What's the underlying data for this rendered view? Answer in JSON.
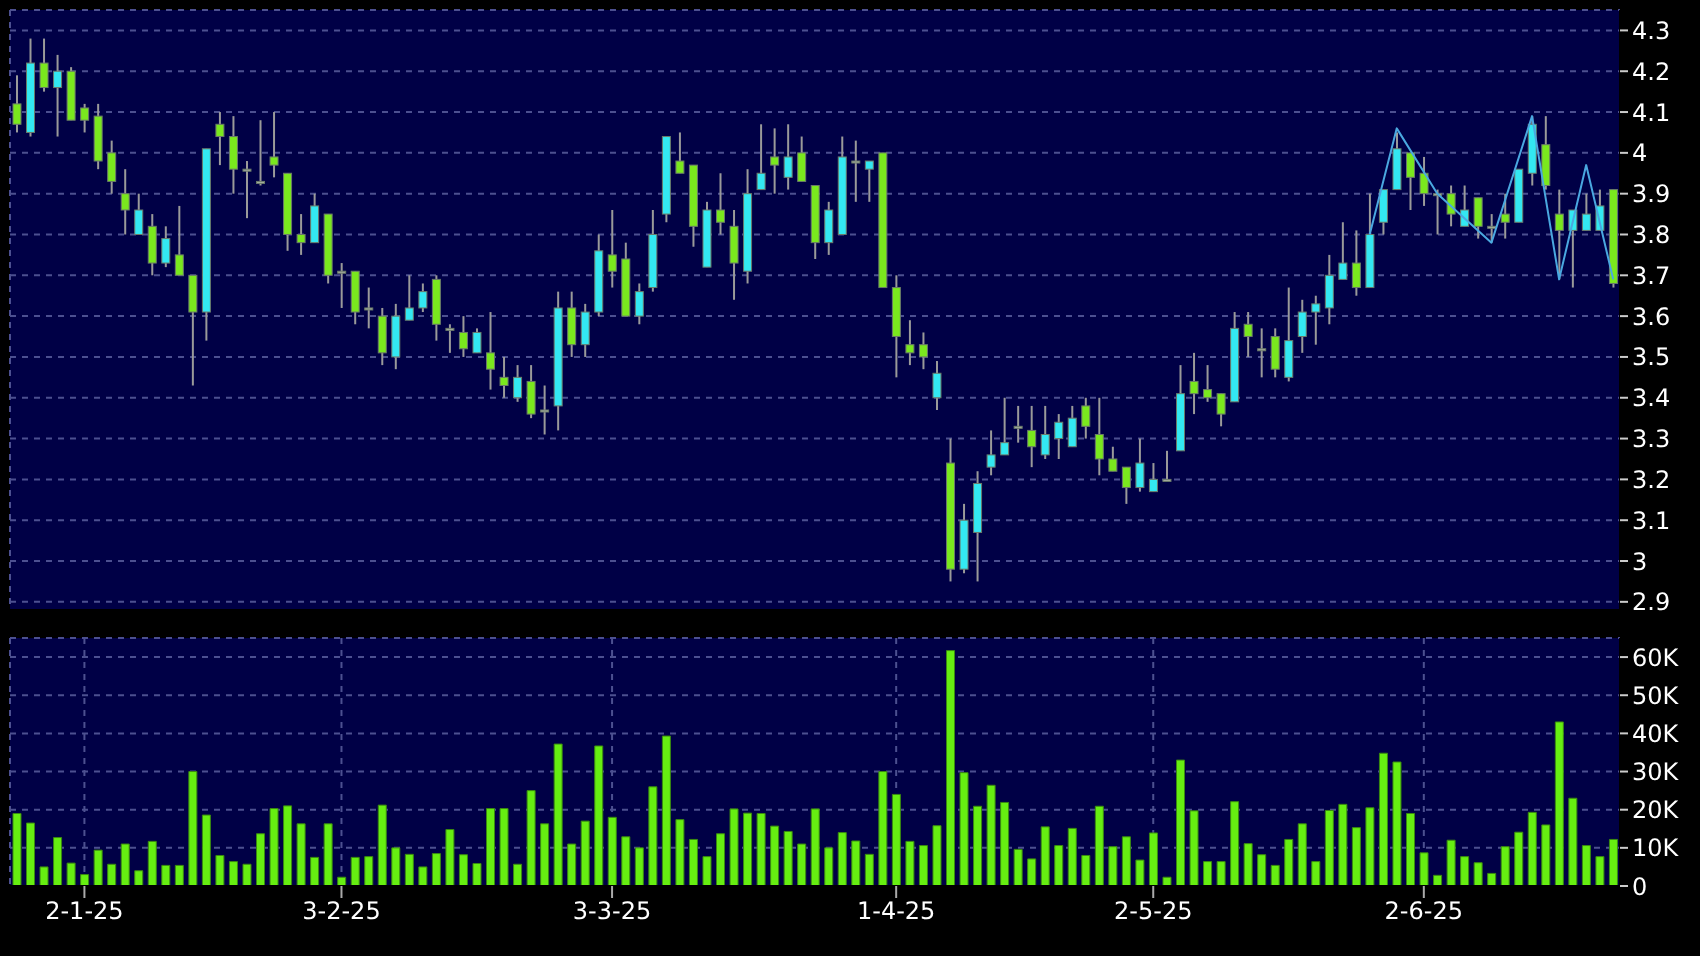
{
  "chart_data": [
    {
      "type": "candlestick",
      "tick_labels": "y",
      "grid": true,
      "ylim": [
        2.88,
        4.35
      ],
      "yticks": [
        2.9,
        3,
        3.1,
        3.2,
        3.3,
        3.4,
        3.5,
        3.6,
        3.7,
        3.8,
        3.9,
        4,
        4.1,
        4.2,
        4.3
      ],
      "categories": [
        null,
        null,
        null,
        null,
        null,
        null,
        null,
        null,
        null,
        null,
        null,
        null,
        null,
        null,
        null,
        null,
        null,
        null,
        null,
        null,
        null,
        null,
        null,
        null,
        null,
        null,
        null,
        null,
        null,
        null,
        null,
        null,
        null,
        null,
        null,
        null,
        null,
        null,
        null,
        null,
        null,
        null,
        null,
        null,
        null,
        null,
        null,
        null,
        null,
        null,
        null,
        null,
        null,
        null,
        null,
        null,
        null,
        null,
        null,
        null,
        null,
        null,
        null,
        null,
        null,
        null,
        null,
        null,
        null,
        null,
        null,
        null,
        null,
        null,
        null,
        null,
        null,
        null,
        null,
        null,
        null,
        null,
        null,
        null,
        null,
        null,
        null,
        null,
        null,
        null,
        null,
        null,
        null,
        null,
        null,
        null,
        null,
        null,
        null,
        null,
        null,
        null,
        null,
        null,
        null,
        null,
        null,
        null,
        null,
        null,
        null,
        null,
        null,
        null,
        null,
        null,
        null,
        null,
        null
      ],
      "ohlc": [
        [
          4.12,
          4.19,
          4.05,
          4.07
        ],
        [
          4.05,
          4.28,
          4.04,
          4.22
        ],
        [
          4.22,
          4.28,
          4.15,
          4.16
        ],
        [
          4.16,
          4.24,
          4.04,
          4.2
        ],
        [
          4.2,
          4.21,
          4.08,
          4.08
        ],
        [
          4.11,
          4.12,
          4.05,
          4.08
        ],
        [
          4.09,
          4.12,
          3.96,
          3.98
        ],
        [
          4.0,
          4.03,
          3.9,
          3.93
        ],
        [
          3.9,
          3.96,
          3.8,
          3.86
        ],
        [
          3.8,
          3.9,
          3.8,
          3.86
        ],
        [
          3.82,
          3.85,
          3.7,
          3.73
        ],
        [
          3.73,
          3.82,
          3.72,
          3.79
        ],
        [
          3.75,
          3.87,
          3.7,
          3.7
        ],
        [
          3.7,
          3.7,
          3.43,
          3.61
        ],
        [
          3.61,
          4.01,
          3.54,
          4.01
        ],
        [
          4.07,
          4.1,
          3.97,
          4.04
        ],
        [
          4.04,
          4.09,
          3.9,
          3.96
        ],
        [
          3.96,
          3.98,
          3.84,
          3.96
        ],
        [
          3.93,
          4.08,
          3.92,
          3.93
        ],
        [
          3.99,
          4.1,
          3.94,
          3.97
        ],
        [
          3.95,
          3.95,
          3.76,
          3.8
        ],
        [
          3.8,
          3.85,
          3.75,
          3.78
        ],
        [
          3.78,
          3.9,
          3.78,
          3.87
        ],
        [
          3.85,
          3.85,
          3.68,
          3.7
        ],
        [
          3.71,
          3.73,
          3.62,
          3.71
        ],
        [
          3.71,
          3.71,
          3.58,
          3.61
        ],
        [
          3.62,
          3.67,
          3.57,
          3.62
        ],
        [
          3.6,
          3.62,
          3.48,
          3.51
        ],
        [
          3.5,
          3.63,
          3.47,
          3.6
        ],
        [
          3.59,
          3.7,
          3.59,
          3.62
        ],
        [
          3.62,
          3.68,
          3.61,
          3.66
        ],
        [
          3.69,
          3.7,
          3.54,
          3.58
        ],
        [
          3.57,
          3.58,
          3.51,
          3.57
        ],
        [
          3.56,
          3.6,
          3.5,
          3.52
        ],
        [
          3.51,
          3.57,
          3.51,
          3.56
        ],
        [
          3.51,
          3.61,
          3.42,
          3.47
        ],
        [
          3.45,
          3.5,
          3.4,
          3.43
        ],
        [
          3.4,
          3.48,
          3.39,
          3.45
        ],
        [
          3.44,
          3.48,
          3.35,
          3.36
        ],
        [
          3.37,
          3.43,
          3.31,
          3.37
        ],
        [
          3.38,
          3.66,
          3.32,
          3.62
        ],
        [
          3.62,
          3.66,
          3.5,
          3.53
        ],
        [
          3.53,
          3.63,
          3.5,
          3.61
        ],
        [
          3.61,
          3.8,
          3.6,
          3.76
        ],
        [
          3.75,
          3.86,
          3.67,
          3.71
        ],
        [
          3.74,
          3.78,
          3.6,
          3.6
        ],
        [
          3.6,
          3.68,
          3.58,
          3.66
        ],
        [
          3.67,
          3.86,
          3.66,
          3.8
        ],
        [
          3.85,
          4.04,
          3.83,
          4.04
        ],
        [
          3.98,
          4.05,
          3.95,
          3.95
        ],
        [
          3.97,
          3.97,
          3.77,
          3.82
        ],
        [
          3.72,
          3.88,
          3.72,
          3.86
        ],
        [
          3.86,
          3.95,
          3.8,
          3.83
        ],
        [
          3.82,
          3.86,
          3.64,
          3.73
        ],
        [
          3.71,
          3.96,
          3.68,
          3.9
        ],
        [
          3.91,
          4.07,
          3.91,
          3.95
        ],
        [
          3.99,
          4.06,
          3.9,
          3.97
        ],
        [
          3.94,
          4.07,
          3.91,
          3.99
        ],
        [
          4.0,
          4.04,
          3.93,
          3.93
        ],
        [
          3.92,
          3.92,
          3.74,
          3.78
        ],
        [
          3.78,
          3.88,
          3.75,
          3.86
        ],
        [
          3.8,
          4.04,
          3.8,
          3.99
        ],
        [
          3.98,
          4.03,
          3.88,
          3.98
        ],
        [
          3.96,
          3.98,
          3.88,
          3.98
        ],
        [
          4.0,
          4.0,
          3.67,
          3.67
        ],
        [
          3.67,
          3.7,
          3.45,
          3.55
        ],
        [
          3.53,
          3.59,
          3.48,
          3.51
        ],
        [
          3.53,
          3.56,
          3.47,
          3.5
        ],
        [
          3.4,
          3.49,
          3.37,
          3.46
        ],
        [
          3.24,
          3.3,
          2.95,
          2.98
        ],
        [
          2.98,
          3.14,
          2.97,
          3.1
        ],
        [
          3.07,
          3.22,
          2.95,
          3.19
        ],
        [
          3.23,
          3.32,
          3.21,
          3.26
        ],
        [
          3.26,
          3.4,
          3.26,
          3.29
        ],
        [
          3.33,
          3.38,
          3.29,
          3.33
        ],
        [
          3.32,
          3.38,
          3.23,
          3.28
        ],
        [
          3.26,
          3.38,
          3.25,
          3.31
        ],
        [
          3.3,
          3.36,
          3.25,
          3.34
        ],
        [
          3.28,
          3.38,
          3.28,
          3.35
        ],
        [
          3.38,
          3.4,
          3.3,
          3.33
        ],
        [
          3.31,
          3.4,
          3.21,
          3.25
        ],
        [
          3.25,
          3.28,
          3.22,
          3.22
        ],
        [
          3.23,
          3.23,
          3.14,
          3.18
        ],
        [
          3.18,
          3.3,
          3.17,
          3.24
        ],
        [
          3.17,
          3.24,
          3.17,
          3.2
        ],
        [
          3.2,
          3.27,
          3.2,
          3.2
        ],
        [
          3.27,
          3.48,
          3.27,
          3.41
        ],
        [
          3.44,
          3.51,
          3.36,
          3.41
        ],
        [
          3.42,
          3.48,
          3.39,
          3.4
        ],
        [
          3.41,
          3.41,
          3.33,
          3.36
        ],
        [
          3.39,
          3.61,
          3.39,
          3.57
        ],
        [
          3.58,
          3.61,
          3.5,
          3.55
        ],
        [
          3.52,
          3.57,
          3.45,
          3.52
        ],
        [
          3.55,
          3.57,
          3.45,
          3.47
        ],
        [
          3.45,
          3.67,
          3.44,
          3.54
        ],
        [
          3.55,
          3.64,
          3.51,
          3.61
        ],
        [
          3.61,
          3.65,
          3.53,
          3.63
        ],
        [
          3.62,
          3.75,
          3.58,
          3.7
        ],
        [
          3.69,
          3.83,
          3.69,
          3.73
        ],
        [
          3.73,
          3.81,
          3.65,
          3.67
        ],
        [
          3.67,
          3.9,
          3.67,
          3.8
        ],
        [
          3.83,
          3.91,
          3.8,
          3.91
        ],
        [
          3.91,
          4.05,
          3.91,
          4.01
        ],
        [
          4.0,
          4.0,
          3.86,
          3.94
        ],
        [
          3.95,
          3.99,
          3.87,
          3.9
        ],
        [
          3.9,
          3.91,
          3.8,
          3.9
        ],
        [
          3.9,
          3.92,
          3.82,
          3.85
        ],
        [
          3.82,
          3.92,
          3.82,
          3.86
        ],
        [
          3.89,
          3.89,
          3.79,
          3.82
        ],
        [
          3.82,
          3.85,
          3.78,
          3.82
        ],
        [
          3.85,
          3.9,
          3.79,
          3.83
        ],
        [
          3.83,
          3.96,
          3.83,
          3.96
        ],
        [
          3.95,
          4.09,
          3.92,
          4.07
        ],
        [
          4.02,
          4.09,
          3.91,
          3.92
        ],
        [
          3.85,
          3.91,
          3.69,
          3.81
        ],
        [
          3.81,
          3.86,
          3.67,
          3.86
        ],
        [
          3.81,
          3.9,
          3.81,
          3.85
        ],
        [
          3.81,
          3.91,
          3.81,
          3.87
        ],
        [
          3.91,
          3.91,
          3.67,
          3.68
        ]
      ],
      "colors": [
        "#7ae81e",
        "#33e8f2",
        "#7ae81e",
        "#33e8f2",
        "#7ae81e",
        "#7ae81e",
        "#7ae81e",
        "#7ae81e",
        "#7ae81e",
        "#33e8f2",
        "#7ae81e",
        "#33e8f2",
        "#7ae81e",
        "#7ae81e",
        "#33e8f2",
        "#7ae81e",
        "#7ae81e",
        "#a8b0a0",
        "#a8b0a0",
        "#7ae81e",
        "#7ae81e",
        "#7ae81e",
        "#33e8f2",
        "#7ae81e",
        "#a8b0a0",
        "#7ae81e",
        "#a8b0a0",
        "#7ae81e",
        "#33e8f2",
        "#33e8f2",
        "#33e8f2",
        "#7ae81e",
        "#a8b0a0",
        "#7ae81e",
        "#33e8f2",
        "#7ae81e",
        "#7ae81e",
        "#33e8f2",
        "#7ae81e",
        "#a8b0a0",
        "#33e8f2",
        "#7ae81e",
        "#33e8f2",
        "#33e8f2",
        "#7ae81e",
        "#7ae81e",
        "#33e8f2",
        "#33e8f2",
        "#33e8f2",
        "#7ae81e",
        "#7ae81e",
        "#33e8f2",
        "#7ae81e",
        "#7ae81e",
        "#33e8f2",
        "#33e8f2",
        "#7ae81e",
        "#33e8f2",
        "#7ae81e",
        "#7ae81e",
        "#33e8f2",
        "#33e8f2",
        "#a8b0a0",
        "#33e8f2",
        "#7ae81e",
        "#7ae81e",
        "#7ae81e",
        "#7ae81e",
        "#33e8f2",
        "#7ae81e",
        "#33e8f2",
        "#33e8f2",
        "#33e8f2",
        "#33e8f2",
        "#a8b0a0",
        "#7ae81e",
        "#33e8f2",
        "#33e8f2",
        "#33e8f2",
        "#7ae81e",
        "#7ae81e",
        "#7ae81e",
        "#7ae81e",
        "#33e8f2",
        "#33e8f2",
        "#a8b0a0",
        "#33e8f2",
        "#7ae81e",
        "#7ae81e",
        "#7ae81e",
        "#33e8f2",
        "#7ae81e",
        "#a8b0a0",
        "#7ae81e",
        "#33e8f2",
        "#33e8f2",
        "#33e8f2",
        "#33e8f2",
        "#33e8f2",
        "#7ae81e",
        "#33e8f2",
        "#33e8f2",
        "#33e8f2",
        "#7ae81e",
        "#7ae81e",
        "#a8b0a0",
        "#7ae81e",
        "#33e8f2",
        "#7ae81e",
        "#a8b0a0",
        "#7ae81e",
        "#33e8f2",
        "#33e8f2",
        "#7ae81e",
        "#7ae81e",
        "#33e8f2",
        "#33e8f2",
        "#33e8f2",
        "#7ae81e"
      ],
      "series": [
        {
          "type": "line",
          "color": "#4aa8e0",
          "values": [
            null,
            null,
            null,
            null,
            null,
            null,
            null,
            null,
            null,
            null,
            null,
            null,
            null,
            null,
            null,
            null,
            null,
            null,
            null,
            null,
            null,
            null,
            null,
            null,
            null,
            null,
            null,
            null,
            null,
            null,
            null,
            null,
            null,
            null,
            null,
            null,
            null,
            null,
            null,
            null,
            null,
            null,
            null,
            null,
            null,
            null,
            null,
            null,
            null,
            null,
            null,
            null,
            null,
            null,
            null,
            null,
            null,
            null,
            null,
            null,
            null,
            null,
            null,
            null,
            null,
            null,
            null,
            null,
            null,
            null,
            null,
            null,
            null,
            null,
            null,
            null,
            null,
            null,
            null,
            null,
            null,
            null,
            null,
            null,
            null,
            null,
            null,
            null,
            null,
            null,
            null,
            null,
            null,
            null,
            null,
            null,
            null,
            null,
            null,
            null,
            3.8,
            null,
            4.06,
            null,
            null,
            3.9,
            null,
            null,
            null,
            3.78,
            null,
            null,
            4.09,
            null,
            3.69,
            null,
            3.97,
            null,
            3.69
          ]
        }
      ]
    },
    {
      "type": "bar",
      "grid": true,
      "color": "#66ee11",
      "ylim": [
        0,
        65000
      ],
      "yticks": [
        0,
        {
          "value": 10000,
          "label": "10K"
        },
        {
          "value": 20000,
          "label": "20K"
        },
        {
          "value": 30000,
          "label": "30K"
        },
        {
          "value": 40000,
          "label": "40K"
        },
        {
          "value": 50000,
          "label": "50K"
        },
        {
          "value": 60000,
          "label": "60K"
        }
      ],
      "categories": [
        null,
        null,
        null,
        null,
        null,
        "2-1-25",
        null,
        null,
        null,
        null,
        null,
        null,
        null,
        null,
        null,
        null,
        null,
        null,
        null,
        null,
        null,
        null,
        null,
        null,
        "3-2-25",
        null,
        null,
        null,
        null,
        null,
        null,
        null,
        null,
        null,
        null,
        null,
        null,
        null,
        null,
        null,
        null,
        null,
        null,
        null,
        "3-3-25",
        null,
        null,
        null,
        null,
        null,
        null,
        null,
        null,
        null,
        null,
        null,
        null,
        null,
        null,
        null,
        null,
        null,
        null,
        null,
        null,
        "1-4-25",
        null,
        null,
        null,
        null,
        null,
        null,
        null,
        null,
        null,
        null,
        null,
        null,
        null,
        null,
        null,
        null,
        null,
        null,
        "2-5-25",
        null,
        null,
        null,
        null,
        null,
        null,
        null,
        null,
        null,
        null,
        null,
        null,
        null,
        null,
        null,
        null,
        null,
        null,
        null,
        "2-6-25",
        null,
        null,
        null,
        null,
        null,
        null,
        null,
        null,
        null,
        null,
        null,
        null,
        null,
        null
      ],
      "values": [
        19000,
        16500,
        5000,
        12700,
        6000,
        3000,
        9400,
        5700,
        11000,
        4000,
        11700,
        5400,
        5400,
        30000,
        18600,
        8000,
        6400,
        5700,
        13700,
        20300,
        21000,
        16300,
        7500,
        16300,
        2300,
        7500,
        7700,
        21200,
        10000,
        8300,
        5000,
        8500,
        14800,
        8200,
        5900,
        20300,
        20300,
        5700,
        25000,
        16300,
        37200,
        11000,
        17000,
        36700,
        18000,
        12900,
        10000,
        26000,
        39300,
        17400,
        12200,
        7700,
        13700,
        20200,
        19100,
        19000,
        15700,
        14300,
        11000,
        20200,
        10000,
        14000,
        11800,
        8300,
        30000,
        24000,
        11700,
        10600,
        15800,
        61700,
        29700,
        20900,
        26400,
        21900,
        9600,
        7100,
        15500,
        10600,
        15100,
        8000,
        20900,
        10300,
        12900,
        6800,
        13900,
        2300,
        33000,
        19700,
        6400,
        6400,
        22100,
        11100,
        8200,
        5400,
        12200,
        16300,
        6400,
        19800,
        21400,
        15300,
        20500,
        34800,
        32500,
        19000,
        8700,
        2800,
        12000,
        7700,
        6100,
        3300,
        10300,
        14100,
        19300,
        16000,
        43000,
        23000,
        10600,
        7700,
        12200
      ]
    }
  ]
}
